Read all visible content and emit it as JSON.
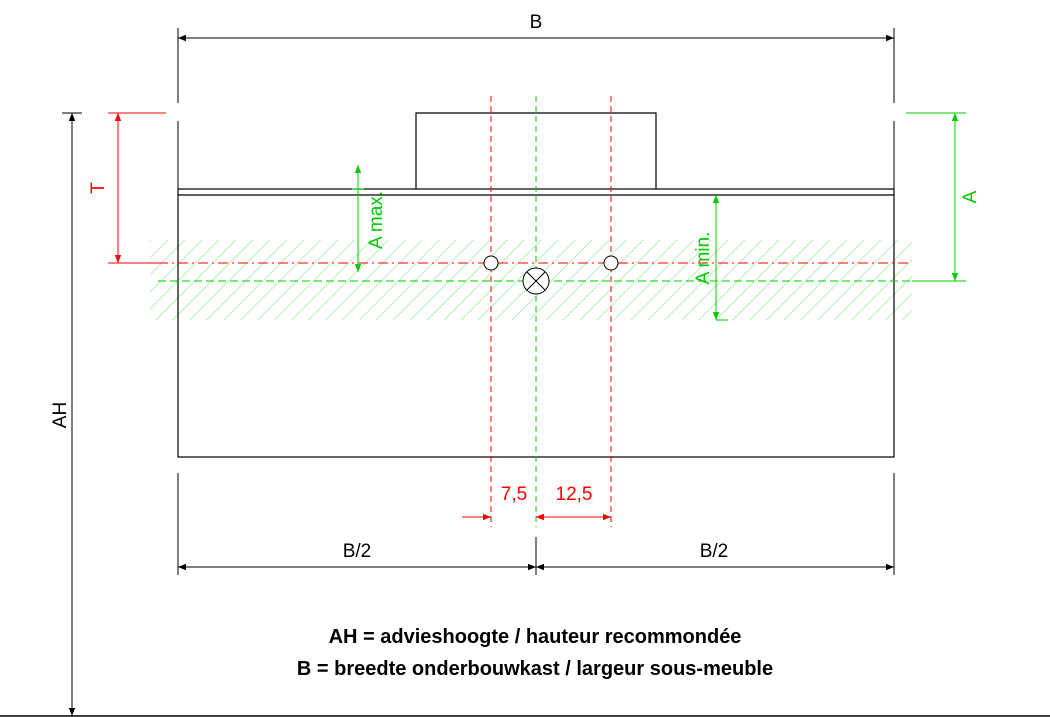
{
  "labels": {
    "width": "B",
    "half_left": "B/2",
    "half_right": "B/2",
    "height": "AH",
    "tap_depth": "T",
    "a": "A",
    "a_max": "A max.",
    "a_min": "A min.",
    "offset_left": "7,5",
    "offset_right": "12,5"
  },
  "legend": [
    "AH = advieshoogte / hauteur recommondée",
    "B = breedte onderbouwkast / largeur sous-meuble"
  ],
  "colors": {
    "outline": "#000000",
    "red": "#ff0000",
    "green": "#00cc00",
    "hatch": "#9ee89e"
  }
}
